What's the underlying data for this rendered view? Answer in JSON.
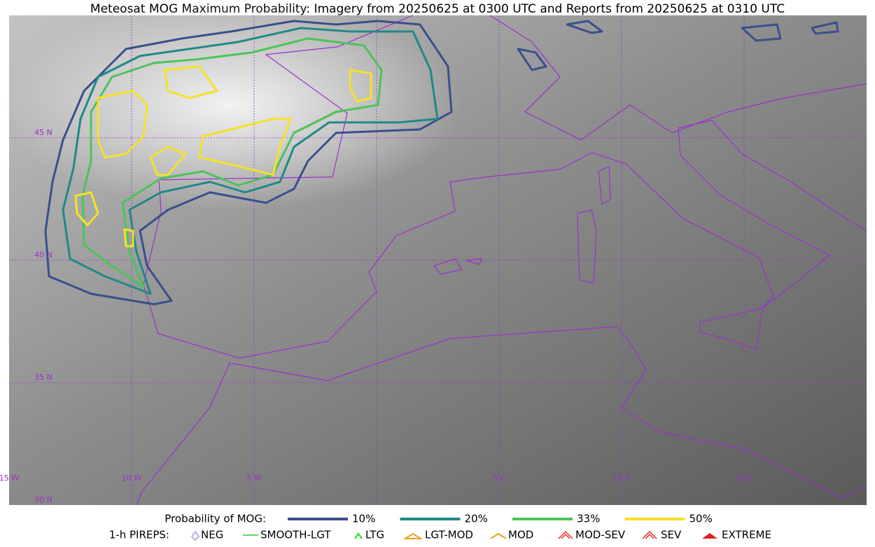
{
  "title": "Meteosat MOG Maximum Probability: Imagery from 20250625 at 0300 UTC and Reports from 20250625 at 0310 UTC",
  "grid": {
    "lat_labels": [
      "45 N",
      "40 N",
      "35 N",
      "30 N"
    ],
    "lon_labels": [
      "15 W",
      "10 W",
      "5 W",
      "5 E",
      "10 E",
      "15 E"
    ]
  },
  "legend": {
    "probability": {
      "title": "Probability of MOG:",
      "levels": [
        {
          "label": "10%",
          "color": "#3a4f8c"
        },
        {
          "label": "20%",
          "color": "#1f8a86"
        },
        {
          "label": "33%",
          "color": "#4cc35a"
        },
        {
          "label": "50%",
          "color": "#f5e12a"
        }
      ]
    },
    "pireps": {
      "title": "1-h PIREPS:",
      "items": [
        {
          "label": "NEG"
        },
        {
          "label": "SMOOTH-LGT"
        },
        {
          "label": "LTG"
        },
        {
          "label": "LGT-MOD"
        },
        {
          "label": "MOD"
        },
        {
          "label": "MOD-SEV"
        },
        {
          "label": "SEV"
        },
        {
          "label": "EXTREME"
        }
      ]
    }
  }
}
